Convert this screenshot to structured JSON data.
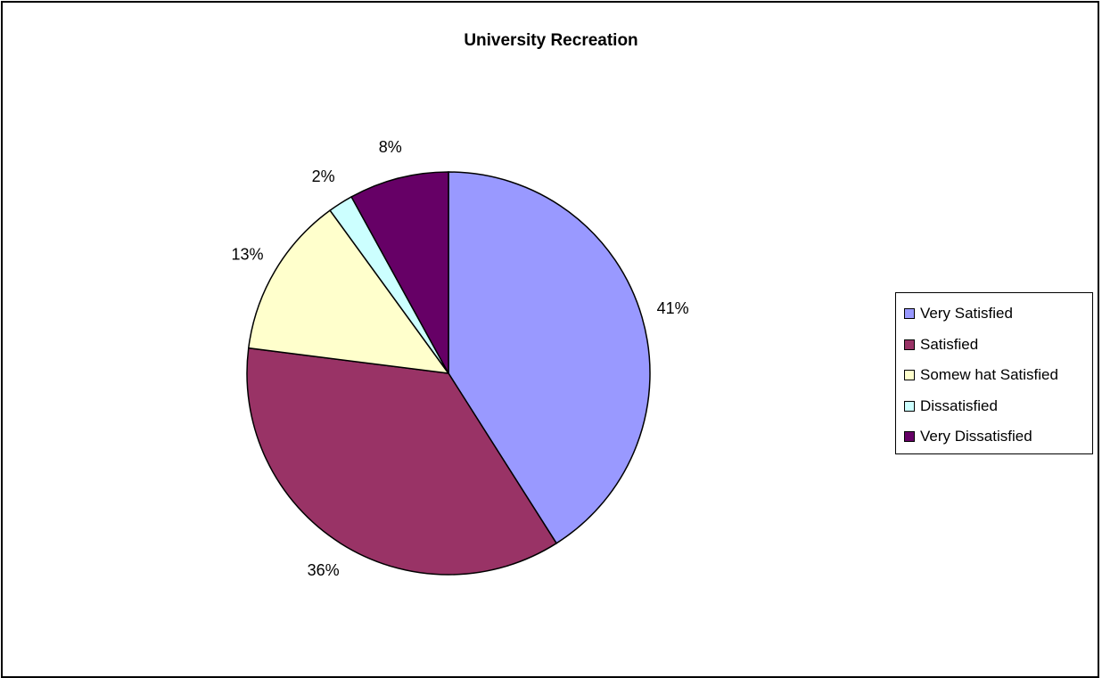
{
  "chart_data": {
    "type": "pie",
    "title": "University Recreation",
    "categories": [
      "Very Satisfied",
      "Satisfied",
      "Somewhat Satisfied",
      "Dissatisfied",
      "Very Dissatisfied"
    ],
    "values": [
      41,
      36,
      13,
      2,
      8
    ],
    "value_labels": [
      "41%",
      "36%",
      "13%",
      "2%",
      "8%"
    ],
    "legend_labels": [
      "Very Satisfied",
      "Satisfied",
      "Somew hat Satisfied",
      "Dissatisfied",
      "Very Dissatisfied"
    ],
    "colors": [
      "#9999FF",
      "#993366",
      "#FFFFCC",
      "#CCFFFF",
      "#660066"
    ],
    "legend_position": "right"
  }
}
